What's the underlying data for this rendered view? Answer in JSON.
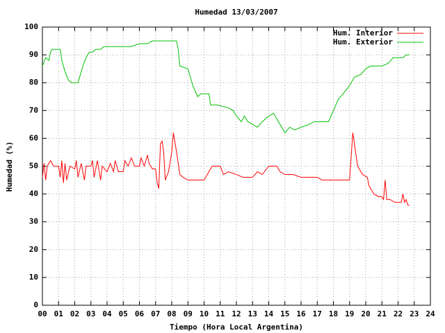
{
  "chart_data": {
    "type": "line",
    "title": "Humedad 13/03/2007",
    "xlabel": "Tiempo (Hora Local Argentina)",
    "ylabel": "Humedad (%)",
    "xlim": [
      0,
      24
    ],
    "ylim": [
      0,
      100
    ],
    "xticks": [
      {
        "value": 0,
        "label": "00"
      },
      {
        "value": 1,
        "label": "01"
      },
      {
        "value": 2,
        "label": "02"
      },
      {
        "value": 3,
        "label": "03"
      },
      {
        "value": 4,
        "label": "04"
      },
      {
        "value": 5,
        "label": "05"
      },
      {
        "value": 6,
        "label": "06"
      },
      {
        "value": 7,
        "label": "07"
      },
      {
        "value": 8,
        "label": "08"
      },
      {
        "value": 9,
        "label": "09"
      },
      10,
      11,
      12,
      13,
      14,
      15,
      16,
      17,
      18,
      19,
      20,
      21,
      22,
      23,
      24
    ],
    "yticks": [
      0,
      10,
      20,
      30,
      40,
      50,
      60,
      70,
      80,
      90,
      100
    ],
    "grid": true,
    "legend": "top-right",
    "series": [
      {
        "name": "Hum. Interior",
        "color": "#ff0000",
        "x": [
          0,
          0.1,
          0.2,
          0.3,
          0.5,
          0.7,
          1.0,
          1.1,
          1.2,
          1.3,
          1.4,
          1.5,
          1.7,
          2.0,
          2.1,
          2.2,
          2.4,
          2.6,
          2.7,
          3.0,
          3.1,
          3.2,
          3.4,
          3.6,
          3.7,
          4.0,
          4.2,
          4.4,
          4.5,
          4.7,
          5.0,
          5.1,
          5.3,
          5.5,
          5.7,
          6.0,
          6.1,
          6.3,
          6.5,
          6.6,
          6.8,
          7.0,
          7.1,
          7.2,
          7.3,
          7.4,
          7.5,
          7.6,
          7.8,
          8.0,
          8.1,
          8.3,
          8.5,
          8.7,
          9.0,
          10.0,
          10.3,
          10.5,
          11.0,
          11.2,
          11.5,
          12.0,
          12.4,
          13.0,
          13.3,
          13.6,
          14.0,
          14.5,
          14.7,
          15.0,
          15.5,
          16.0,
          17.0,
          17.3,
          19.0,
          19.2,
          19.3,
          19.5,
          19.8,
          20.1,
          20.2,
          20.5,
          20.8,
          21.0,
          21.1,
          21.2,
          21.3,
          21.5,
          21.8,
          22.0,
          22.2,
          22.3,
          22.4,
          22.5,
          22.6,
          22.7
        ],
        "values": [
          46,
          51,
          45,
          50,
          52,
          50,
          50,
          46,
          52,
          44,
          51,
          45,
          50,
          49,
          52,
          46,
          51,
          45,
          50,
          50,
          52,
          46,
          52,
          45,
          50,
          48,
          51,
          48,
          52,
          48,
          48,
          52,
          50,
          53,
          50,
          50,
          53,
          50,
          54,
          51,
          49,
          49,
          44,
          42,
          58,
          59,
          55,
          45,
          48,
          55,
          62,
          55,
          47,
          46,
          45,
          45,
          48,
          50,
          50,
          47,
          48,
          47,
          46,
          46,
          48,
          47,
          50,
          50,
          48,
          47,
          47,
          46,
          46,
          45,
          45,
          62,
          58,
          50,
          47,
          46,
          43,
          40,
          39,
          39,
          38,
          45,
          38,
          38,
          37,
          37,
          37,
          40,
          37,
          38,
          36,
          36
        ]
      },
      {
        "name": "Hum. Exterior",
        "color": "#00c000",
        "x": [
          0,
          0.2,
          0.4,
          0.5,
          0.6,
          1.1,
          1.2,
          1.4,
          1.6,
          1.8,
          2.0,
          2.2,
          2.3,
          2.5,
          2.7,
          2.9,
          3.1,
          3.3,
          3.6,
          3.8,
          5.5,
          6.0,
          6.5,
          6.8,
          7.5,
          8.3,
          8.4,
          8.5,
          9.0,
          9.3,
          9.6,
          9.8,
          10.3,
          10.4,
          10.8,
          11.5,
          11.8,
          12.0,
          12.3,
          12.5,
          12.7,
          13.0,
          13.3,
          13.6,
          14.0,
          14.3,
          14.5,
          14.7,
          15.0,
          15.3,
          15.6,
          16.0,
          16.5,
          16.8,
          17.2,
          17.7,
          18.0,
          18.3,
          18.6,
          19.0,
          19.3,
          19.7,
          20.0,
          20.3,
          21.0,
          21.4,
          21.7,
          22.3,
          22.5,
          22.7
        ],
        "values": [
          86,
          89,
          88,
          91,
          92,
          92,
          88,
          84,
          81,
          80,
          80,
          80,
          82,
          86,
          89,
          91,
          91,
          92,
          92,
          93,
          93,
          94,
          94,
          95,
          95,
          95,
          92,
          86,
          85,
          79,
          75,
          76,
          76,
          72,
          72,
          71,
          70,
          68,
          66,
          68,
          66,
          65,
          64,
          66,
          68,
          69,
          67,
          65,
          62,
          64,
          63,
          64,
          65,
          66,
          66,
          66,
          70,
          74,
          76,
          79,
          82,
          83,
          85,
          86,
          86,
          87,
          89,
          89,
          90,
          90
        ]
      }
    ]
  }
}
